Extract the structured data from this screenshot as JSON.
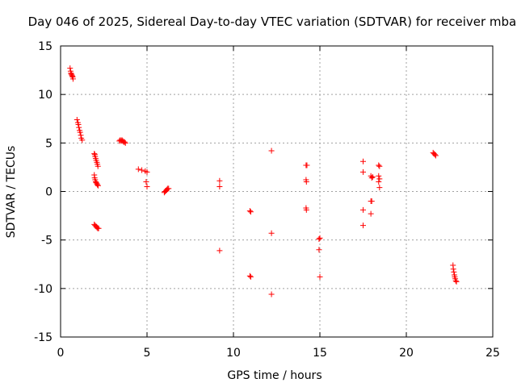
{
  "chart_data": {
    "type": "scatter",
    "title": "Day 046 of 2025, Sidereal Day-to-day VTEC variation (SDTVAR) for receiver mbar",
    "xlabel": "GPS time / hours",
    "ylabel": "SDTVAR / TECUs",
    "xlim": [
      0,
      25
    ],
    "ylim": [
      -15,
      15
    ],
    "x_ticks": [
      0,
      5,
      10,
      15,
      20,
      25
    ],
    "y_ticks": [
      -15,
      -10,
      -5,
      0,
      5,
      10,
      15
    ],
    "x_tick_labels": [
      "0",
      "5",
      "10",
      "15",
      "20",
      "25"
    ],
    "y_tick_labels": [
      "-15",
      "-10",
      "-5",
      "0",
      "5",
      "10",
      "15"
    ],
    "grid": true,
    "marker": "+",
    "color": "#ff0000",
    "series": [
      {
        "name": "SDTVAR",
        "points": [
          [
            0.55,
            12.7
          ],
          [
            0.58,
            12.4
          ],
          [
            0.6,
            12.2
          ],
          [
            0.62,
            12.1
          ],
          [
            0.65,
            12.0
          ],
          [
            0.68,
            11.9
          ],
          [
            0.7,
            11.8
          ],
          [
            0.72,
            11.6
          ],
          [
            0.95,
            7.4
          ],
          [
            1.0,
            7.1
          ],
          [
            1.03,
            6.9
          ],
          [
            1.06,
            6.6
          ],
          [
            1.1,
            6.3
          ],
          [
            1.13,
            6.1
          ],
          [
            1.17,
            5.8
          ],
          [
            1.2,
            5.5
          ],
          [
            1.25,
            5.3
          ],
          [
            1.95,
            3.9
          ],
          [
            1.98,
            3.8
          ],
          [
            2.0,
            3.6
          ],
          [
            2.03,
            3.4
          ],
          [
            2.06,
            3.2
          ],
          [
            2.1,
            3.0
          ],
          [
            2.13,
            2.8
          ],
          [
            2.16,
            2.6
          ],
          [
            1.95,
            1.7
          ],
          [
            1.97,
            1.4
          ],
          [
            2.0,
            1.2
          ],
          [
            2.03,
            1.0
          ],
          [
            2.06,
            0.9
          ],
          [
            2.1,
            0.8
          ],
          [
            2.13,
            0.7
          ],
          [
            2.17,
            0.6
          ],
          [
            1.95,
            -3.4
          ],
          [
            2.0,
            -3.5
          ],
          [
            2.05,
            -3.6
          ],
          [
            2.1,
            -3.7
          ],
          [
            2.15,
            -3.8
          ],
          [
            2.2,
            -3.8
          ],
          [
            3.4,
            5.2
          ],
          [
            3.45,
            5.3
          ],
          [
            3.5,
            5.2
          ],
          [
            3.55,
            5.3
          ],
          [
            3.6,
            5.2
          ],
          [
            3.65,
            5.1
          ],
          [
            3.7,
            5.1
          ],
          [
            3.75,
            5.0
          ],
          [
            4.5,
            2.3
          ],
          [
            4.7,
            2.2
          ],
          [
            4.9,
            2.1
          ],
          [
            5.0,
            2.0
          ],
          [
            4.95,
            1.0
          ],
          [
            5.0,
            0.5
          ],
          [
            6.0,
            -0.1
          ],
          [
            6.05,
            0.0
          ],
          [
            6.1,
            0.1
          ],
          [
            6.15,
            0.2
          ],
          [
            6.2,
            0.3
          ],
          [
            6.25,
            0.3
          ],
          [
            9.2,
            1.1
          ],
          [
            9.2,
            0.5
          ],
          [
            9.2,
            -6.1
          ],
          [
            10.95,
            -2.0
          ],
          [
            11.0,
            -2.1
          ],
          [
            10.95,
            -8.7
          ],
          [
            11.0,
            -8.8
          ],
          [
            12.2,
            4.2
          ],
          [
            12.2,
            -4.3
          ],
          [
            12.2,
            -10.6
          ],
          [
            14.2,
            2.7
          ],
          [
            14.25,
            2.7
          ],
          [
            14.2,
            1.2
          ],
          [
            14.22,
            1.0
          ],
          [
            14.2,
            -1.7
          ],
          [
            14.22,
            -1.9
          ],
          [
            14.95,
            -4.9
          ],
          [
            15.0,
            -4.8
          ],
          [
            14.95,
            -6.0
          ],
          [
            15.0,
            -8.8
          ],
          [
            17.5,
            3.1
          ],
          [
            17.5,
            2.0
          ],
          [
            17.5,
            -1.9
          ],
          [
            17.5,
            -3.5
          ],
          [
            17.95,
            1.6
          ],
          [
            18.0,
            1.4
          ],
          [
            18.05,
            1.5
          ],
          [
            17.95,
            -1.0
          ],
          [
            18.0,
            -1.0
          ],
          [
            17.95,
            -2.3
          ],
          [
            18.4,
            2.7
          ],
          [
            18.45,
            2.6
          ],
          [
            18.4,
            1.6
          ],
          [
            18.45,
            1.3
          ],
          [
            18.4,
            1.0
          ],
          [
            18.45,
            0.4
          ],
          [
            21.55,
            4.0
          ],
          [
            21.6,
            3.9
          ],
          [
            21.65,
            3.8
          ],
          [
            21.7,
            3.7
          ],
          [
            22.7,
            -7.6
          ],
          [
            22.72,
            -8.0
          ],
          [
            22.75,
            -8.3
          ],
          [
            22.78,
            -8.6
          ],
          [
            22.8,
            -8.8
          ],
          [
            22.83,
            -9.0
          ],
          [
            22.86,
            -9.2
          ],
          [
            22.9,
            -9.3
          ]
        ]
      }
    ]
  }
}
